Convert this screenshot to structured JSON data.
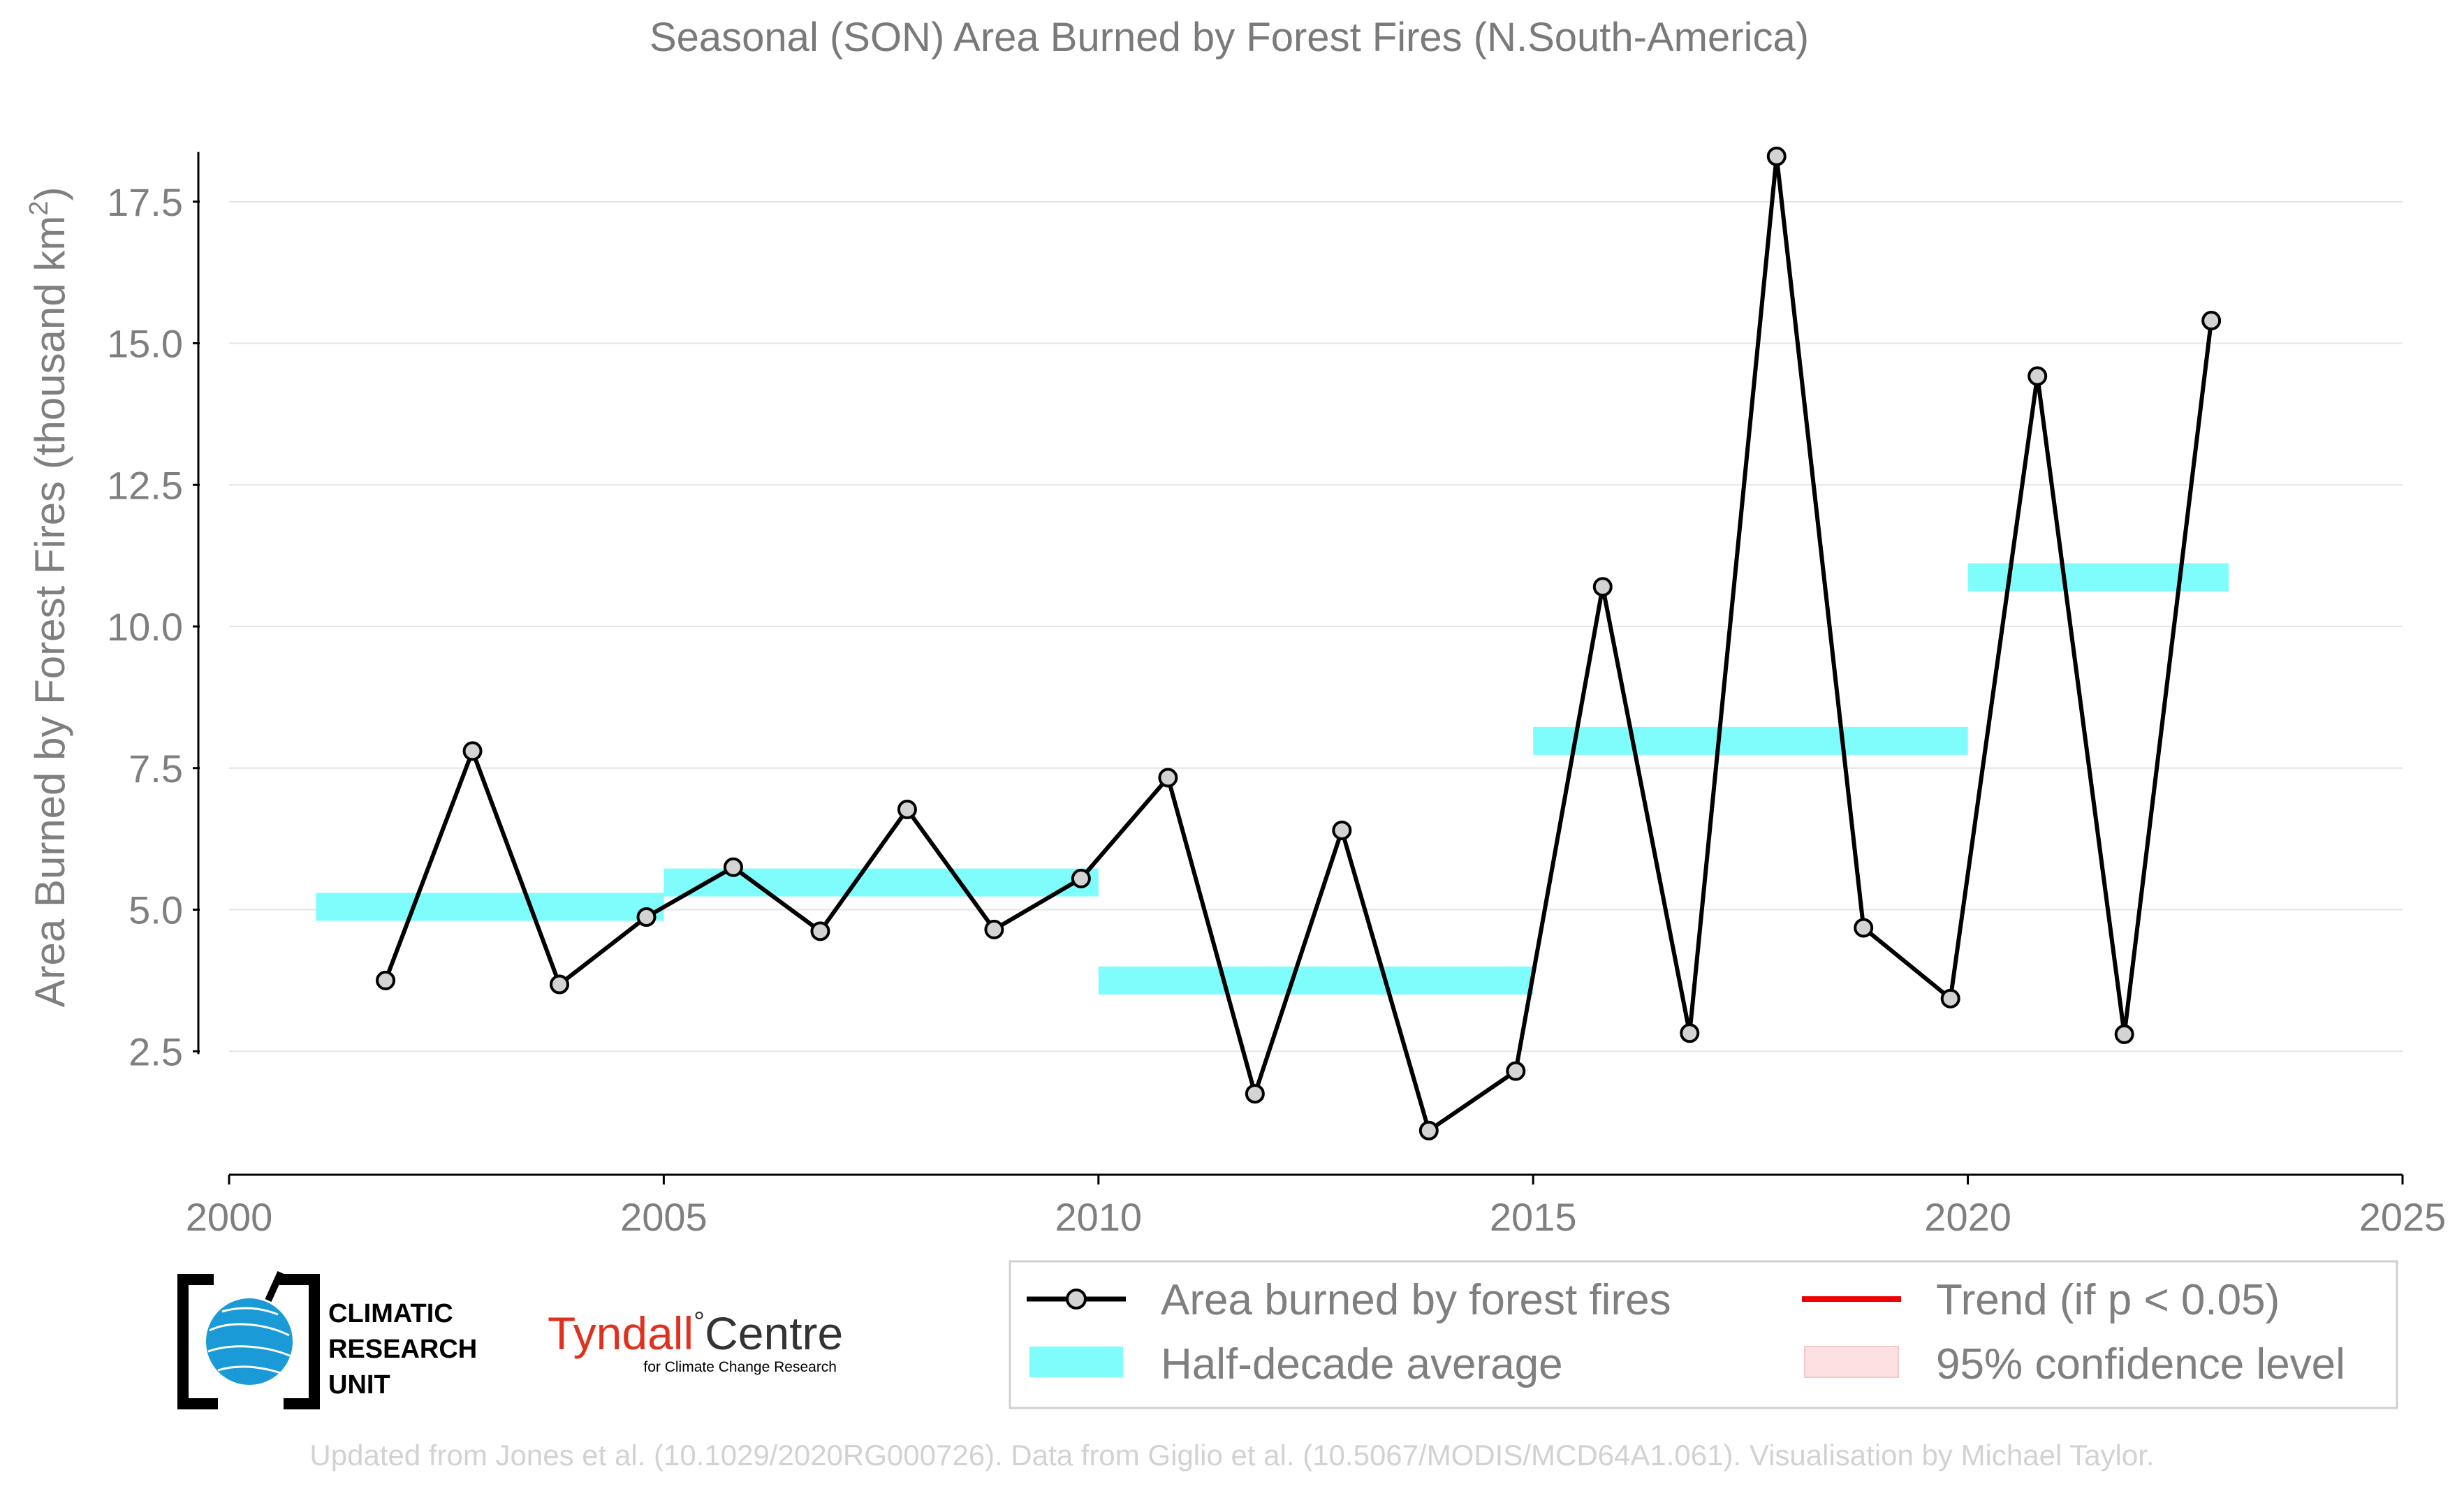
{
  "chart_data": {
    "type": "line",
    "title": "Seasonal (SON) Area Burned by Forest Fires (N.South-America)",
    "ylabel": "Area Burned by Forest Fires (thousand km",
    "ylabel_superscript": "2",
    "ylabel_suffix": ")",
    "xlabel": "",
    "xlim": [
      2000,
      2025
    ],
    "ylim": [
      0,
      18.5
    ],
    "x_ticks": [
      2000,
      2005,
      2010,
      2015,
      2020,
      2025
    ],
    "x_tick_labels": [
      "2000",
      "2005",
      "2010",
      "2015",
      "2020",
      "2025"
    ],
    "y_ticks": [
      2.5,
      5.0,
      7.5,
      10.0,
      12.5,
      15.0,
      17.5
    ],
    "y_tick_labels": [
      "2.5",
      "5.0",
      "7.5",
      "10.0",
      "12.5",
      "15.0",
      "17.5"
    ],
    "grid": "horizontal",
    "series": [
      {
        "name": "Area burned by forest fires",
        "color": "#000000",
        "marker_fill": "#d3d3d3",
        "x": [
          2001.8,
          2002.8,
          2003.8,
          2004.8,
          2005.8,
          2006.8,
          2007.8,
          2008.8,
          2009.8,
          2010.8,
          2011.8,
          2012.8,
          2013.8,
          2014.8,
          2015.8,
          2016.8,
          2017.8,
          2018.8,
          2019.8,
          2020.8,
          2021.8,
          2022.8
        ],
        "values": [
          3.75,
          7.8,
          3.68,
          4.87,
          5.75,
          4.62,
          6.77,
          4.65,
          5.55,
          7.33,
          1.75,
          6.4,
          1.1,
          2.15,
          10.7,
          2.82,
          18.3,
          4.68,
          3.43,
          14.42,
          2.8,
          15.4
        ]
      },
      {
        "name": "Half-decade average",
        "color": "#7ffcfc",
        "segments": [
          {
            "x0": 2001,
            "x1": 2005,
            "value": 5.05
          },
          {
            "x0": 2005,
            "x1": 2010,
            "value": 5.48
          },
          {
            "x0": 2010,
            "x1": 2015,
            "value": 3.75
          },
          {
            "x0": 2015,
            "x1": 2020,
            "value": 7.98
          },
          {
            "x0": 2020,
            "x1": 2023,
            "value": 10.87
          }
        ]
      }
    ],
    "legend": {
      "placement": "bottom-right",
      "entries": [
        {
          "label": "Area burned by forest fires",
          "kind": "line-marker",
          "color": "#000000"
        },
        {
          "label": "Trend (if p < 0.05)",
          "kind": "line",
          "color": "#ee0000"
        },
        {
          "label": "Half-decade average",
          "kind": "patch",
          "color": "#7ffcfc"
        },
        {
          "label": "95% confidence level",
          "kind": "patch",
          "color": "#fde0e0"
        }
      ]
    }
  },
  "logos": {
    "cru": {
      "line1": "CLIMATIC",
      "line2": "RESEARCH",
      "line3": "UNIT"
    },
    "tyndall": {
      "name": "Tyndall",
      "degree": "°",
      "centre": "Centre",
      "tagline": "for Climate Change Research"
    }
  },
  "footer": "Updated from Jones et al. (10.1029/2020RG000726). Data from Giglio et al. (10.5067/MODIS/MCD64A1.061). Visualisation by Michael Taylor."
}
